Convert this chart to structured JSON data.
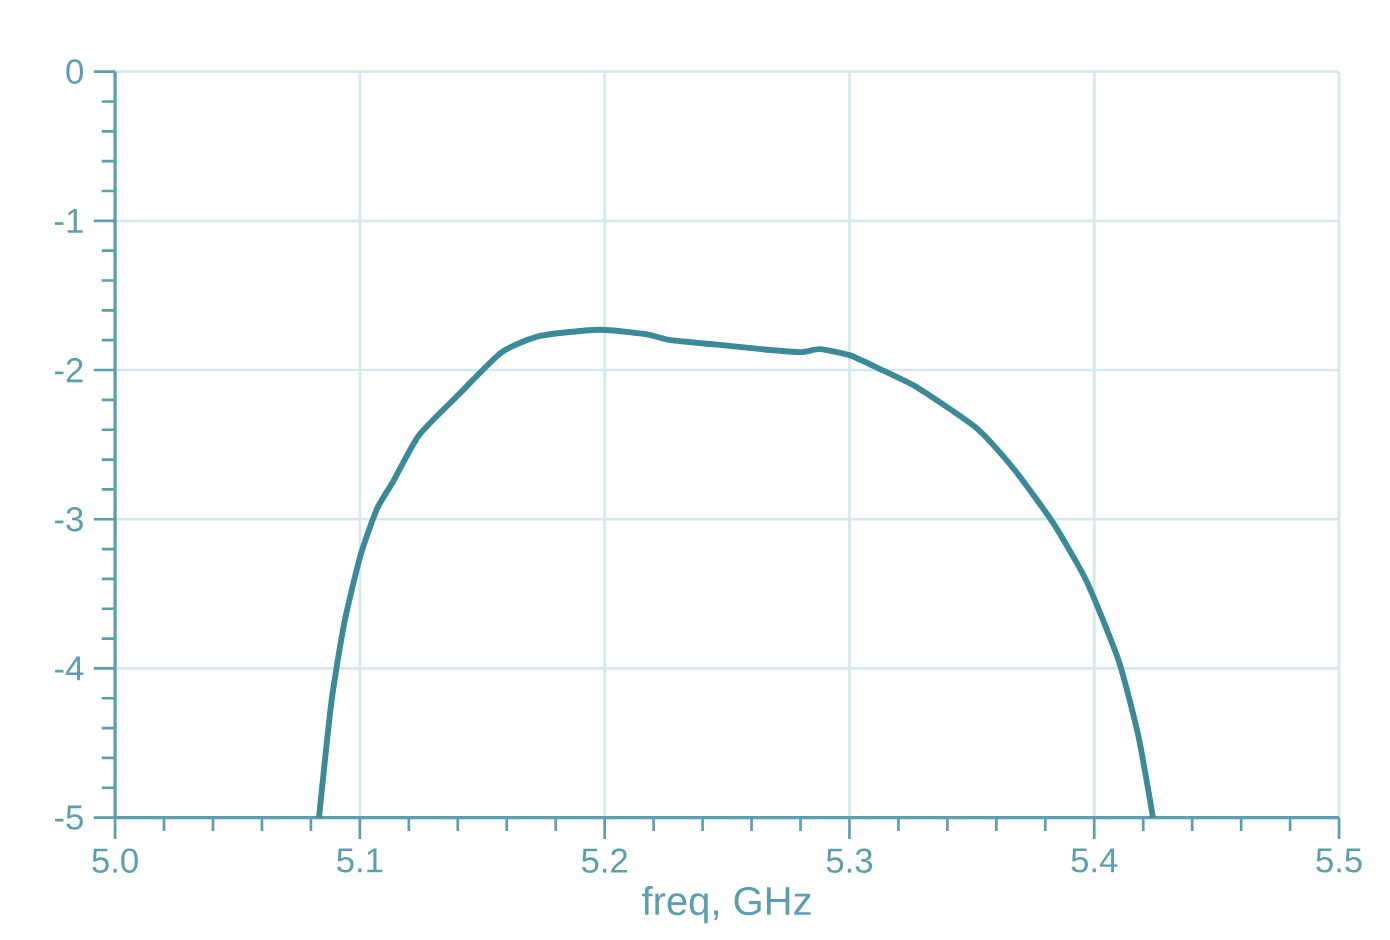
{
  "chart_data": {
    "type": "line",
    "xlabel": "freq, GHz",
    "xlim": [
      5.0,
      5.5
    ],
    "ylim": [
      -5,
      0
    ],
    "xticks": [
      {
        "value": 5.0,
        "label": "5.0"
      },
      {
        "value": 5.1,
        "label": "5.1"
      },
      {
        "value": 5.2,
        "label": "5.2"
      },
      {
        "value": 5.3,
        "label": "5.3"
      },
      {
        "value": 5.4,
        "label": "5.4"
      },
      {
        "value": 5.5,
        "label": "5.5"
      }
    ],
    "yticks": [
      0,
      -1,
      -2,
      -3,
      -4,
      -5
    ],
    "grid": true,
    "series": [
      {
        "color": "#3a8a9a",
        "x": [
          5.0833,
          5.0884,
          5.0937,
          5.1003,
          5.107,
          5.1135,
          5.124,
          5.14,
          5.158,
          5.174,
          5.198,
          5.217,
          5.227,
          5.246,
          5.264,
          5.28,
          5.288,
          5.3,
          5.312,
          5.328,
          5.352,
          5.367,
          5.383,
          5.397,
          5.41,
          5.418,
          5.424
        ],
        "values": [
          -5.0,
          -4.22,
          -3.69,
          -3.24,
          -2.93,
          -2.75,
          -2.44,
          -2.17,
          -1.88,
          -1.77,
          -1.73,
          -1.76,
          -1.8,
          -1.83,
          -1.86,
          -1.88,
          -1.86,
          -1.9,
          -1.99,
          -2.12,
          -2.39,
          -2.66,
          -3.02,
          -3.42,
          -3.95,
          -4.45,
          -5.0
        ]
      }
    ]
  }
}
